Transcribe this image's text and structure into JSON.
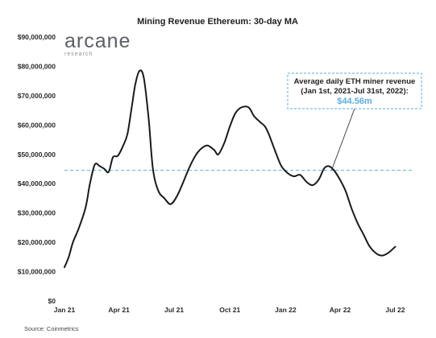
{
  "chart_data": {
    "type": "line",
    "title": "Mining Revenue Ethereum: 30-day MA",
    "y_ticks": [
      "$0",
      "$10,000,000",
      "$20,000,000",
      "$30,000,000",
      "$40,000,000",
      "$50,000,000",
      "$60,000,000",
      "$70,000,000",
      "$80,000,000",
      "$90,000,000"
    ],
    "ylim": [
      0,
      90000000
    ],
    "x_ticks": [
      "Jan 21",
      "Apr 21",
      "Jul 21",
      "Oct 21",
      "Jan 22",
      "Apr 22",
      "Jul 22"
    ],
    "x_range": [
      "2021-01-01",
      "2022-07-31"
    ],
    "grid": false,
    "series": [
      {
        "color": "#1a1a1a",
        "points": [
          [
            "2021-01-01",
            11500000
          ],
          [
            "2021-01-08",
            15000000
          ],
          [
            "2021-01-15",
            20000000
          ],
          [
            "2021-01-25",
            25000000
          ],
          [
            "2021-02-05",
            32000000
          ],
          [
            "2021-02-12",
            40000000
          ],
          [
            "2021-02-20",
            46500000
          ],
          [
            "2021-02-28",
            46000000
          ],
          [
            "2021-03-08",
            45000000
          ],
          [
            "2021-03-15",
            44000000
          ],
          [
            "2021-03-22",
            49000000
          ],
          [
            "2021-03-30",
            49500000
          ],
          [
            "2021-04-08",
            53000000
          ],
          [
            "2021-04-15",
            57000000
          ],
          [
            "2021-04-22",
            66000000
          ],
          [
            "2021-04-28",
            74000000
          ],
          [
            "2021-05-05",
            78500000
          ],
          [
            "2021-05-12",
            76000000
          ],
          [
            "2021-05-20",
            62000000
          ],
          [
            "2021-05-27",
            45000000
          ],
          [
            "2021-06-05",
            37500000
          ],
          [
            "2021-06-15",
            35000000
          ],
          [
            "2021-06-25",
            33000000
          ],
          [
            "2021-07-05",
            35500000
          ],
          [
            "2021-07-15",
            40000000
          ],
          [
            "2021-07-25",
            45000000
          ],
          [
            "2021-08-05",
            49500000
          ],
          [
            "2021-08-15",
            52000000
          ],
          [
            "2021-08-25",
            53000000
          ],
          [
            "2021-09-05",
            51500000
          ],
          [
            "2021-09-12",
            50000000
          ],
          [
            "2021-09-22",
            54000000
          ],
          [
            "2021-10-01",
            59500000
          ],
          [
            "2021-10-10",
            64000000
          ],
          [
            "2021-10-20",
            66000000
          ],
          [
            "2021-11-01",
            66000000
          ],
          [
            "2021-11-10",
            63000000
          ],
          [
            "2021-11-20",
            61000000
          ],
          [
            "2021-11-28",
            59500000
          ],
          [
            "2021-12-05",
            56500000
          ],
          [
            "2021-12-15",
            51000000
          ],
          [
            "2021-12-25",
            46000000
          ],
          [
            "2022-01-05",
            43500000
          ],
          [
            "2022-01-15",
            42500000
          ],
          [
            "2022-01-25",
            43000000
          ],
          [
            "2022-02-05",
            40500000
          ],
          [
            "2022-02-15",
            39500000
          ],
          [
            "2022-02-25",
            41500000
          ],
          [
            "2022-03-05",
            45000000
          ],
          [
            "2022-03-12",
            46000000
          ],
          [
            "2022-03-20",
            45000000
          ],
          [
            "2022-03-30",
            42000000
          ],
          [
            "2022-04-10",
            37500000
          ],
          [
            "2022-04-20",
            31500000
          ],
          [
            "2022-04-30",
            26500000
          ],
          [
            "2022-05-10",
            22500000
          ],
          [
            "2022-05-20",
            18500000
          ],
          [
            "2022-06-01",
            16000000
          ],
          [
            "2022-06-10",
            15500000
          ],
          [
            "2022-06-20",
            16500000
          ],
          [
            "2022-07-01",
            18500000
          ]
        ]
      }
    ],
    "reference_line": {
      "value": 44560000,
      "color": "#5aaee0",
      "style": "dashed"
    },
    "annotation": {
      "line1": "Average daily ETH miner revenue",
      "line2": "(Jan 1st, 2021-Jul 31st, 2022):",
      "value_label": "$44.56m",
      "value_color": "#5aaee0",
      "target_date": "2022-01-01"
    },
    "brand": {
      "name": "arcane",
      "tagline": "research"
    },
    "source": "Source: Coinmetrics"
  }
}
